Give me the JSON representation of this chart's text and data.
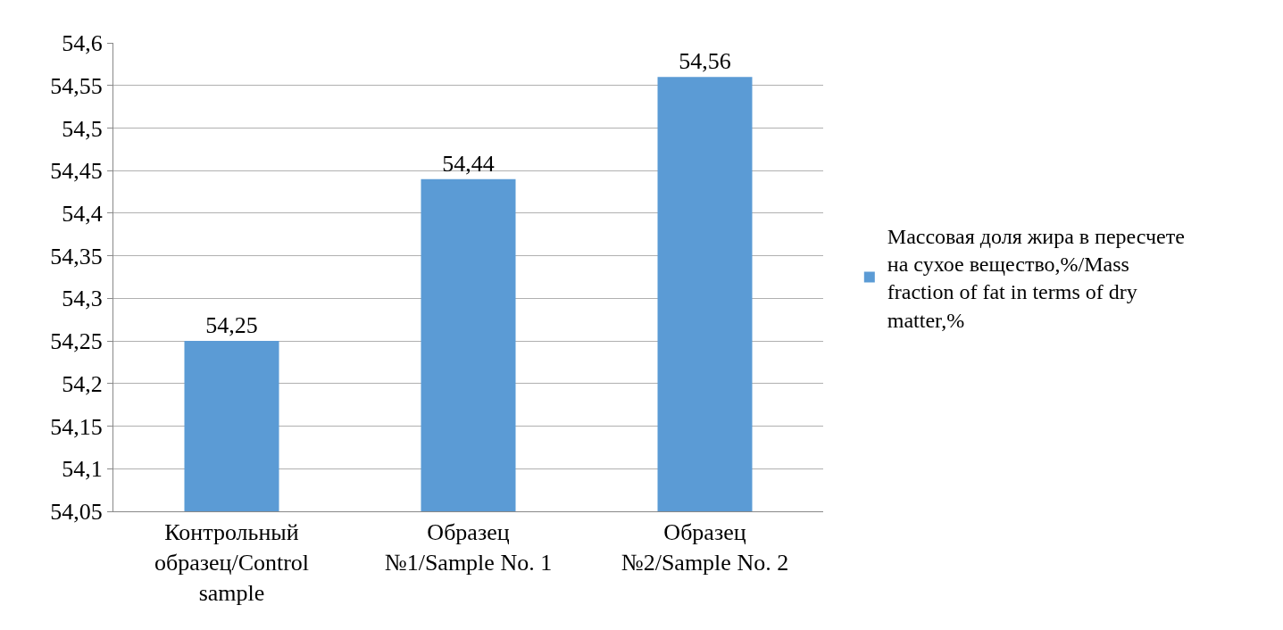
{
  "chart_data": {
    "type": "bar",
    "categories": [
      "Контрольный образец/Control sample",
      "Образец №1/Sample No. 1",
      "Образец №2/Sample No. 2"
    ],
    "series": [
      {
        "name": "Массовая доля жира в пересчете на сухое вещество,%/Mass fraction of fat in terms of dry matter,%",
        "color": "#5b9bd5",
        "values": [
          54.25,
          54.44,
          54.56
        ],
        "value_labels": [
          "54,25",
          "54,44",
          "54,56"
        ]
      }
    ],
    "ylim": [
      54.05,
      54.6
    ],
    "yticks": [
      {
        "value": 54.05,
        "label": "54,05"
      },
      {
        "value": 54.1,
        "label": "54,1"
      },
      {
        "value": 54.15,
        "label": "54,15"
      },
      {
        "value": 54.2,
        "label": "54,2"
      },
      {
        "value": 54.25,
        "label": "54,25"
      },
      {
        "value": 54.3,
        "label": "54,3"
      },
      {
        "value": 54.35,
        "label": "54,35"
      },
      {
        "value": 54.4,
        "label": "54,4"
      },
      {
        "value": 54.45,
        "label": "54,45"
      },
      {
        "value": 54.5,
        "label": "54,5"
      },
      {
        "value": 54.55,
        "label": "54,55"
      },
      {
        "value": 54.6,
        "label": "54,6"
      }
    ],
    "grid": "y",
    "legend": "right"
  }
}
